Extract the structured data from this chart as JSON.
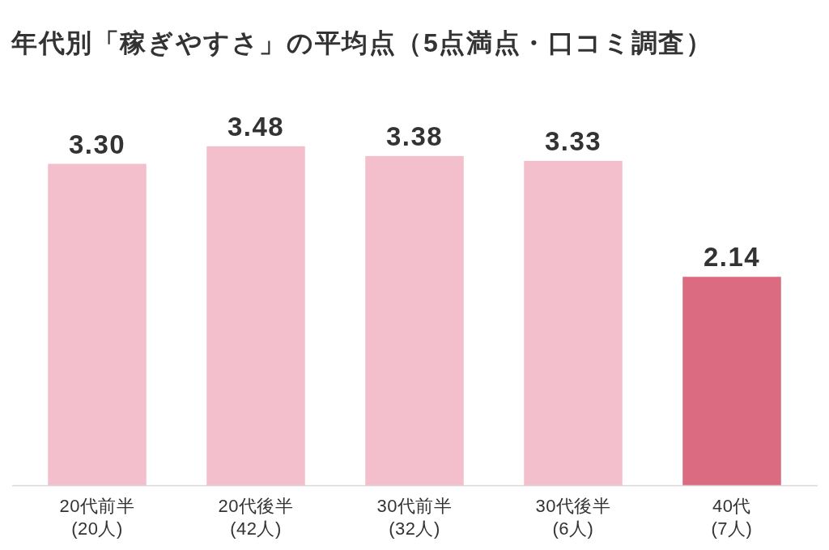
{
  "chart_data": {
    "type": "bar",
    "title": "年代別「稼ぎやすさ」の平均点（5点満点・口コミ調査）",
    "categories": [
      "20代前半\n(20人)",
      "20代後半\n(42人)",
      "30代前半\n(32人)",
      "30代後半\n(6人)",
      "40代\n(7人)"
    ],
    "values": [
      3.3,
      3.48,
      3.38,
      3.33,
      2.14
    ],
    "value_labels": [
      "3.30",
      "3.48",
      "3.38",
      "3.33",
      "2.14"
    ],
    "colors": [
      "#f4bfcc",
      "#f4bfcc",
      "#f4bfcc",
      "#f4bfcc",
      "#da6b81"
    ]
  }
}
